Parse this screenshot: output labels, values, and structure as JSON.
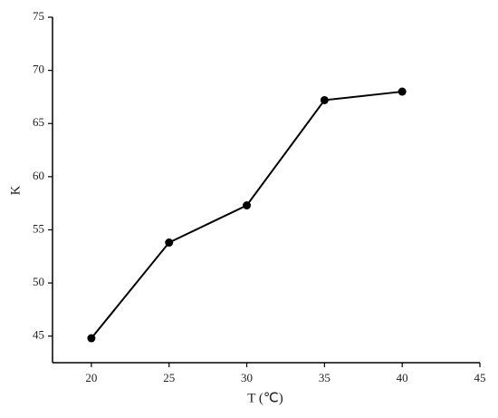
{
  "chart_data": {
    "type": "line",
    "x_label": "T (℃)",
    "y_label": "K",
    "x": [
      20,
      25,
      30,
      35,
      40
    ],
    "series": [
      {
        "name": "K",
        "color": "#000000",
        "values": [
          44.8,
          53.8,
          57.3,
          67.2,
          68.0
        ]
      }
    ],
    "xlim": [
      17.5,
      45
    ],
    "xticks": [
      20,
      25,
      30,
      35,
      40,
      45
    ],
    "ylim": [
      42.5,
      75
    ],
    "yticks": [
      45,
      50,
      55,
      60,
      65,
      70,
      75
    ]
  }
}
